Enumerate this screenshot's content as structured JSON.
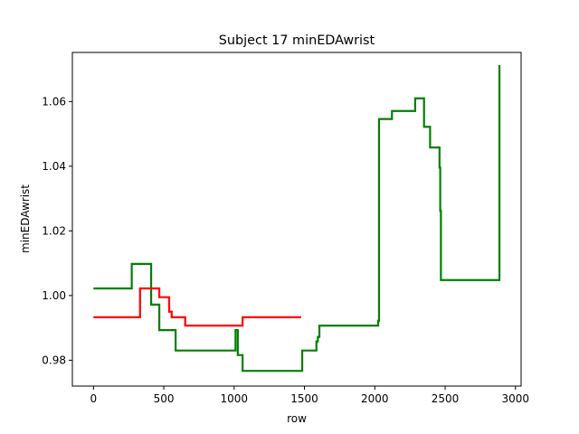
{
  "chart_data": {
    "type": "line",
    "title": "Subject 17 minEDAwrist",
    "xlabel": "row",
    "ylabel": "minEDAwrist",
    "xlim": [
      -150,
      3040
    ],
    "ylim": [
      0.972,
      1.0752
    ],
    "xticks": [
      0,
      500,
      1000,
      1500,
      2000,
      2500,
      3000
    ],
    "xtick_labels": [
      "0",
      "500",
      "1000",
      "1500",
      "2000",
      "2500",
      "3000"
    ],
    "yticks": [
      0.98,
      1.0,
      1.02,
      1.04,
      1.06
    ],
    "ytick_labels": [
      "0.98",
      "1.00",
      "1.02",
      "1.04",
      "1.06"
    ],
    "grid": false,
    "series": [
      {
        "color": "#008000",
        "points": [
          [
            0,
            1.0022
          ],
          [
            272,
            1.0022
          ],
          [
            272,
            1.0098
          ],
          [
            410,
            1.0098
          ],
          [
            410,
            0.9972
          ],
          [
            468,
            0.9972
          ],
          [
            468,
            0.9893
          ],
          [
            584,
            0.9893
          ],
          [
            584,
            0.983
          ],
          [
            1010,
            0.983
          ],
          [
            1010,
            0.9893
          ],
          [
            1026,
            0.9893
          ],
          [
            1026,
            0.9816
          ],
          [
            1060,
            0.9816
          ],
          [
            1060,
            0.9767
          ],
          [
            1484,
            0.9767
          ],
          [
            1484,
            0.983
          ],
          [
            1585,
            0.983
          ],
          [
            1585,
            0.9858
          ],
          [
            1595,
            0.9858
          ],
          [
            1595,
            0.9872
          ],
          [
            1606,
            0.9872
          ],
          [
            1606,
            0.9907
          ],
          [
            2024,
            0.9907
          ],
          [
            2024,
            0.9922
          ],
          [
            2030,
            0.9922
          ],
          [
            2030,
            1.0546
          ],
          [
            2122,
            1.0546
          ],
          [
            2122,
            1.0571
          ],
          [
            2287,
            1.0571
          ],
          [
            2287,
            1.061
          ],
          [
            2350,
            1.061
          ],
          [
            2350,
            1.0522
          ],
          [
            2393,
            1.0522
          ],
          [
            2393,
            1.0458
          ],
          [
            2460,
            1.0458
          ],
          [
            2460,
            1.0396
          ],
          [
            2465,
            1.0396
          ],
          [
            2465,
            1.0262
          ],
          [
            2470,
            1.0262
          ],
          [
            2470,
            1.0048
          ],
          [
            2886,
            1.0048
          ],
          [
            2886,
            1.0713
          ]
        ]
      },
      {
        "color": "#ff0000",
        "points": [
          [
            0,
            0.9933
          ],
          [
            331,
            0.9933
          ],
          [
            331,
            1.0022
          ],
          [
            468,
            1.0022
          ],
          [
            468,
            0.9995
          ],
          [
            538,
            0.9995
          ],
          [
            538,
            0.995
          ],
          [
            556,
            0.995
          ],
          [
            556,
            0.9933
          ],
          [
            652,
            0.9933
          ],
          [
            652,
            0.9907
          ],
          [
            1060,
            0.9907
          ],
          [
            1060,
            0.9933
          ],
          [
            1477,
            0.9933
          ]
        ]
      }
    ]
  }
}
